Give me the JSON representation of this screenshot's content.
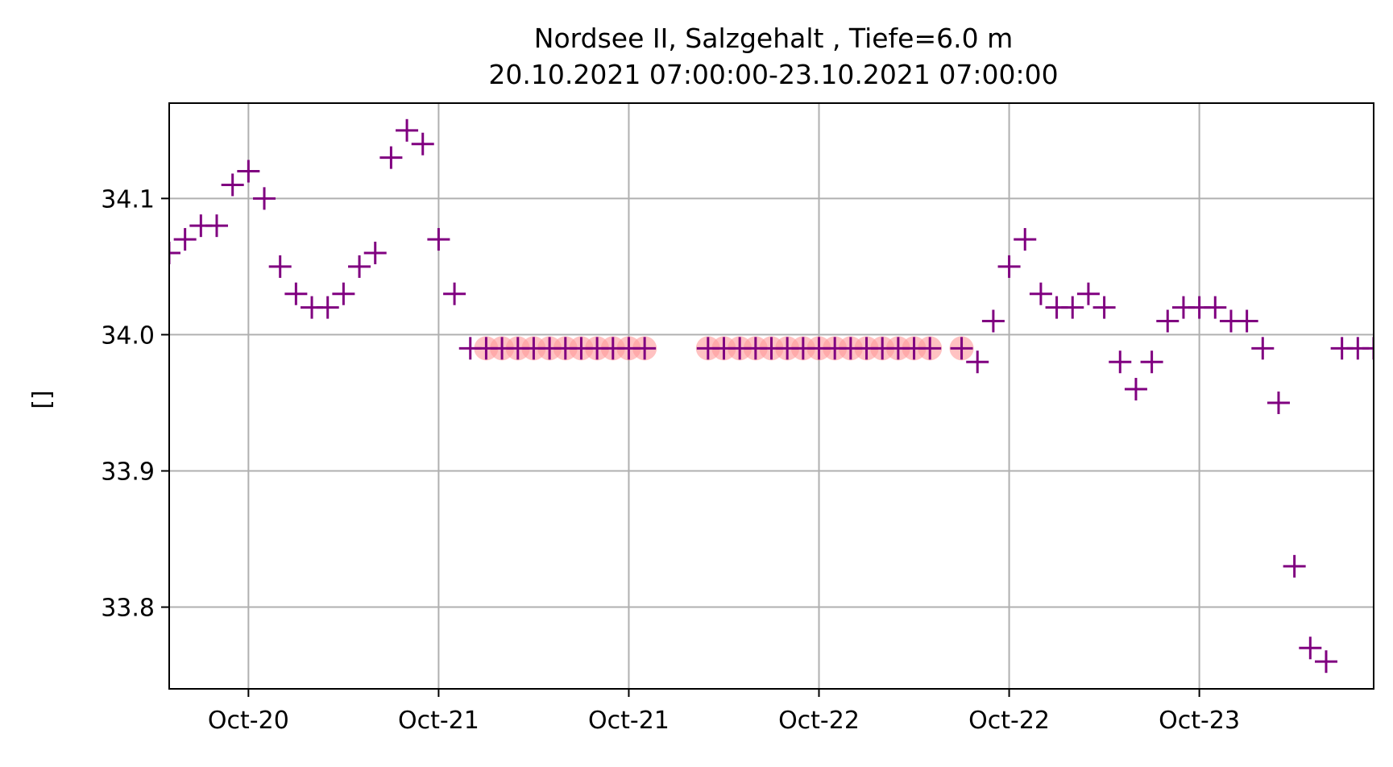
{
  "chart_data": {
    "type": "scatter",
    "title": "Nordsee II, Salzgehalt , Tiefe=6.0 m",
    "subtitle": "20.10.2021 07:00:00-23.10.2021 07:00:00",
    "xlabel": "",
    "ylabel": "[]",
    "grid": true,
    "ylim": [
      33.74,
      34.17
    ],
    "xlim": [
      "2021-10-20 02:00",
      "2021-10-23 06:00"
    ],
    "y_ticks": [
      {
        "value": 33.8,
        "label": "33.8"
      },
      {
        "value": 33.9,
        "label": "33.9"
      },
      {
        "value": 34.0,
        "label": "34.0"
      },
      {
        "value": 34.1,
        "label": "34.1"
      }
    ],
    "x_ticks": [
      {
        "value": "2021-10-20 07:00",
        "label": "Oct-20"
      },
      {
        "value": "2021-10-20 19:00",
        "label": "Oct-21"
      },
      {
        "value": "2021-10-21 07:00",
        "label": "Oct-21"
      },
      {
        "value": "2021-10-21 19:00",
        "label": "Oct-22"
      },
      {
        "value": "2021-10-22 07:00",
        "label": "Oct-22"
      },
      {
        "value": "2021-10-22 19:00",
        "label": "Oct-23"
      }
    ],
    "colors": {
      "marker": "#800080",
      "flag": "#ff9999",
      "grid": "#b0b0b0",
      "axis": "#000000"
    },
    "series": [
      {
        "marker": "plus",
        "x": [
          "2021-10-20 02:00",
          "2021-10-20 03:00",
          "2021-10-20 04:00",
          "2021-10-20 05:00",
          "2021-10-20 06:00",
          "2021-10-20 07:00",
          "2021-10-20 08:00",
          "2021-10-20 09:00",
          "2021-10-20 10:00",
          "2021-10-20 11:00",
          "2021-10-20 12:00",
          "2021-10-20 13:00",
          "2021-10-20 14:00",
          "2021-10-20 15:00",
          "2021-10-20 16:00",
          "2021-10-20 17:00",
          "2021-10-20 18:00",
          "2021-10-20 19:00",
          "2021-10-20 20:00",
          "2021-10-20 21:00",
          "2021-10-20 22:00",
          "2021-10-20 23:00",
          "2021-10-21 00:00",
          "2021-10-21 01:00",
          "2021-10-21 02:00",
          "2021-10-21 03:00",
          "2021-10-21 04:00",
          "2021-10-21 05:00",
          "2021-10-21 06:00",
          "2021-10-21 07:00",
          "2021-10-21 08:00",
          "2021-10-21 12:00",
          "2021-10-21 13:00",
          "2021-10-21 14:00",
          "2021-10-21 15:00",
          "2021-10-21 16:00",
          "2021-10-21 17:00",
          "2021-10-21 18:00",
          "2021-10-21 19:00",
          "2021-10-21 20:00",
          "2021-10-21 21:00",
          "2021-10-21 22:00",
          "2021-10-21 23:00",
          "2021-10-22 00:00",
          "2021-10-22 01:00",
          "2021-10-22 02:00",
          "2021-10-22 04:00",
          "2021-10-22 05:00",
          "2021-10-22 06:00",
          "2021-10-22 07:00",
          "2021-10-22 08:00",
          "2021-10-22 09:00",
          "2021-10-22 10:00",
          "2021-10-22 11:00",
          "2021-10-22 12:00",
          "2021-10-22 13:00",
          "2021-10-22 14:00",
          "2021-10-22 15:00",
          "2021-10-22 16:00",
          "2021-10-22 17:00",
          "2021-10-22 18:00",
          "2021-10-22 19:00",
          "2021-10-22 20:00",
          "2021-10-22 21:00",
          "2021-10-22 22:00",
          "2021-10-22 23:00",
          "2021-10-23 00:00",
          "2021-10-23 01:00",
          "2021-10-23 02:00",
          "2021-10-23 03:00",
          "2021-10-23 04:00",
          "2021-10-23 05:00",
          "2021-10-23 06:00"
        ],
        "y": [
          34.06,
          34.07,
          34.08,
          34.08,
          34.11,
          34.12,
          34.1,
          34.05,
          34.03,
          34.02,
          34.02,
          34.03,
          34.05,
          34.06,
          34.13,
          34.15,
          34.14,
          34.07,
          34.03,
          33.99,
          33.99,
          33.99,
          33.99,
          33.99,
          33.99,
          33.99,
          33.99,
          33.99,
          33.99,
          33.99,
          33.99,
          33.99,
          33.99,
          33.99,
          33.99,
          33.99,
          33.99,
          33.99,
          33.99,
          33.99,
          33.99,
          33.99,
          33.99,
          33.99,
          33.99,
          33.99,
          33.99,
          33.98,
          34.01,
          34.05,
          34.07,
          34.03,
          34.02,
          34.02,
          34.03,
          34.02,
          33.98,
          33.96,
          33.98,
          34.01,
          34.02,
          34.02,
          34.02,
          34.01,
          34.01,
          33.99,
          33.95,
          33.83,
          33.77,
          33.76,
          33.99,
          33.99,
          33.99
        ]
      }
    ],
    "flagged_x": [
      "2021-10-20 22:00",
      "2021-10-20 23:00",
      "2021-10-21 00:00",
      "2021-10-21 01:00",
      "2021-10-21 02:00",
      "2021-10-21 03:00",
      "2021-10-21 04:00",
      "2021-10-21 05:00",
      "2021-10-21 06:00",
      "2021-10-21 07:00",
      "2021-10-21 08:00",
      "2021-10-21 12:00",
      "2021-10-21 13:00",
      "2021-10-21 14:00",
      "2021-10-21 15:00",
      "2021-10-21 16:00",
      "2021-10-21 17:00",
      "2021-10-21 18:00",
      "2021-10-21 19:00",
      "2021-10-21 20:00",
      "2021-10-21 21:00",
      "2021-10-21 22:00",
      "2021-10-21 23:00",
      "2021-10-22 00:00",
      "2021-10-22 01:00",
      "2021-10-22 02:00",
      "2021-10-22 04:00"
    ],
    "flagged_y": 33.99
  }
}
